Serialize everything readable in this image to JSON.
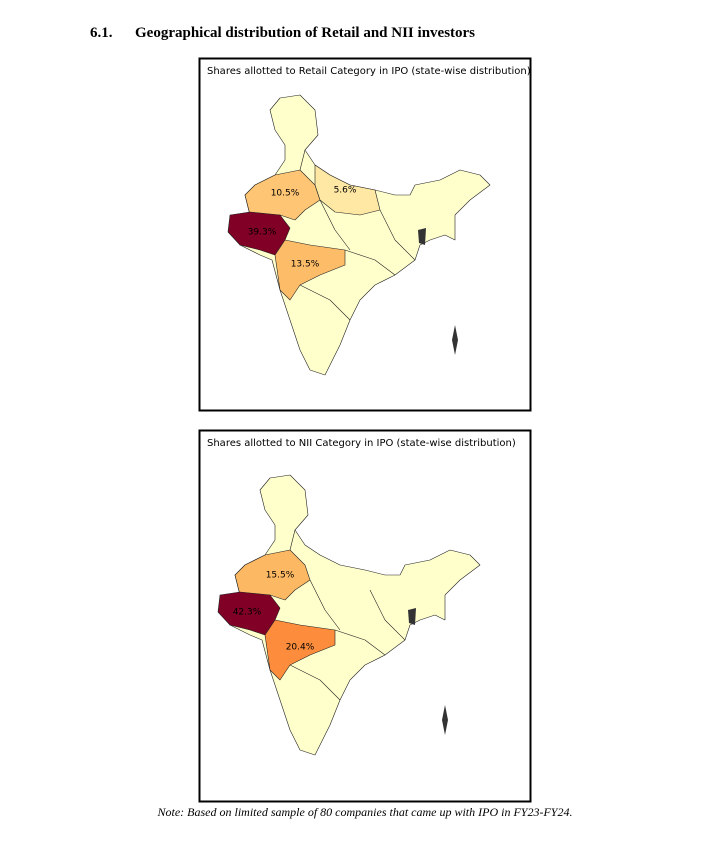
{
  "section": {
    "number": "6.1.",
    "title": "Geographical distribution of Retail and NII investors"
  },
  "maps": [
    {
      "title": "Shares allotted to Retail Category in IPO (state-wise distribution)",
      "labels": [
        "10.5%",
        "5.6%",
        "39.3%",
        "13.5%"
      ]
    },
    {
      "title": "Shares allotted to NII Category in IPO (state-wise distribution)",
      "labels": [
        "15.5%",
        "42.3%",
        "20.4%"
      ]
    }
  ],
  "note": "Note: Based on limited sample of 80 companies that came up with IPO in FY23-FY24."
}
